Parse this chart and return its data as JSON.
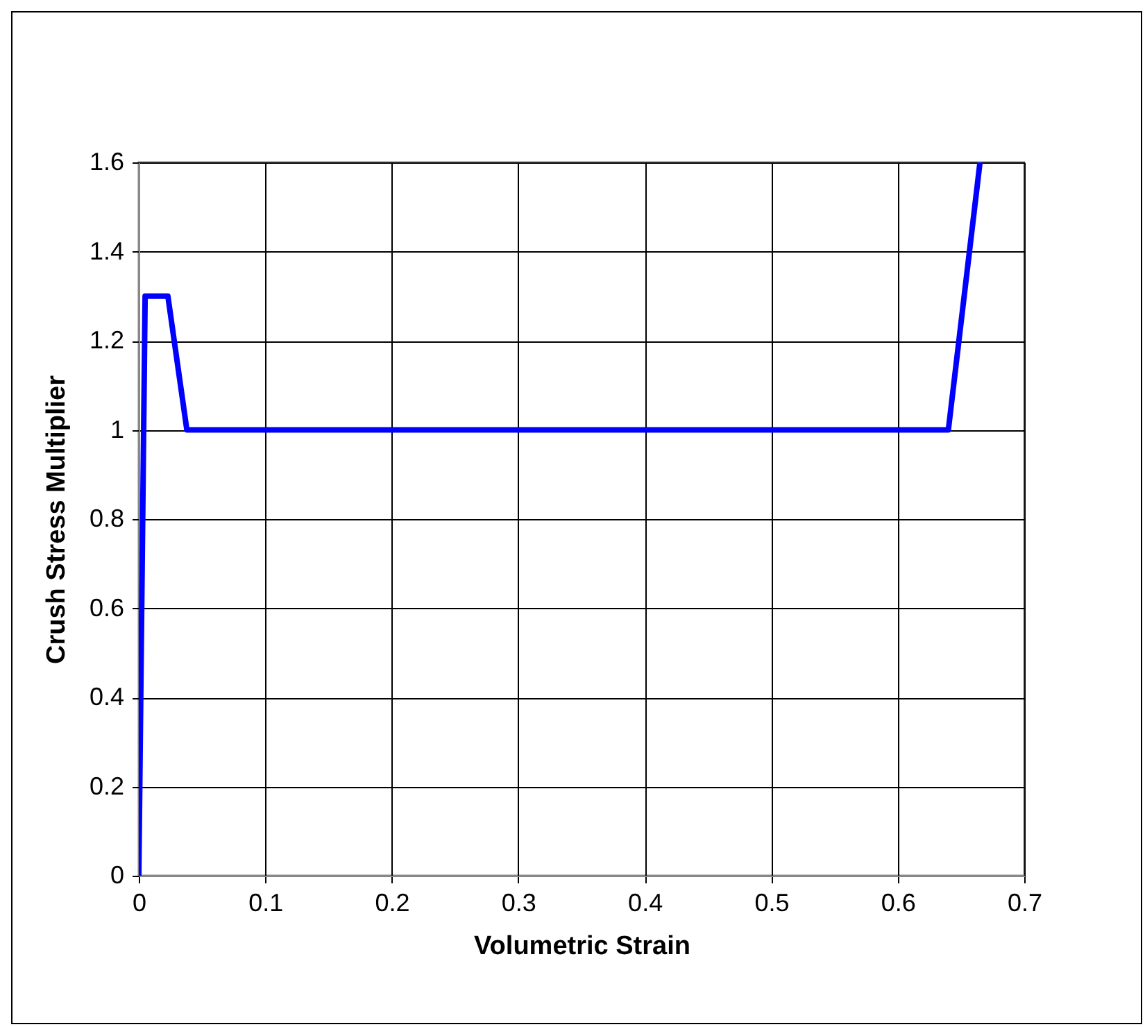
{
  "chart_data": {
    "type": "line",
    "xlabel": "Volumetric Strain",
    "ylabel": "Crush Stress Multiplier",
    "x": [
      0,
      0.005,
      0.023,
      0.038,
      0.64,
      0.665
    ],
    "series": [
      {
        "color": "#0000ff",
        "values": [
          0,
          1.3,
          1.3,
          1,
          1,
          1.6
        ]
      }
    ],
    "xlim": [
      0,
      0.7
    ],
    "xticks": [
      0,
      0.1,
      0.2,
      0.3,
      0.4,
      0.5,
      0.6,
      0.7
    ],
    "ylim": [
      0,
      1.6
    ],
    "yticks": [
      0,
      0.2,
      0.4,
      0.6,
      0.8,
      1,
      1.2,
      1.4,
      1.6
    ],
    "grid": true,
    "legend": false,
    "marker": "none",
    "line_style": "solid"
  }
}
